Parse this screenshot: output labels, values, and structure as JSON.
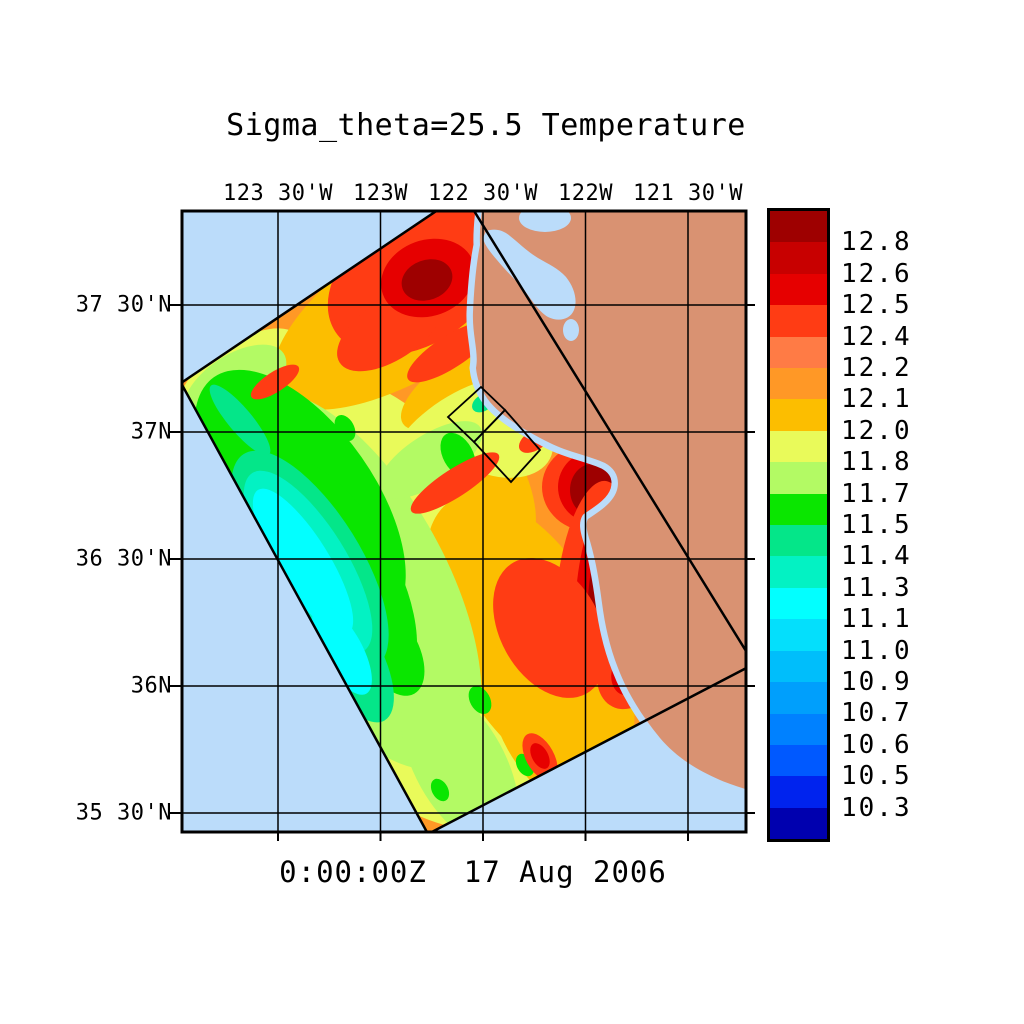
{
  "title": "Sigma_theta=25.5 Temperature",
  "timestamp": "0:00:00Z  17 Aug 2006",
  "axes": {
    "top_labels": [
      "123 30'W",
      "123W",
      "122 30'W",
      "122W",
      "121 30'W"
    ],
    "left_labels": [
      "37 30'N",
      "37N",
      "36 30'N",
      "36N",
      "35 30'N"
    ]
  },
  "colorbar": {
    "tick_labels": [
      "12.8",
      "12.6",
      "12.5",
      "12.4",
      "12.2",
      "12.1",
      "12.0",
      "11.8",
      "11.7",
      "11.5",
      "11.4",
      "11.3",
      "11.1",
      "11.0",
      "10.9",
      "10.7",
      "10.6",
      "10.5",
      "10.3"
    ],
    "colors_top_to_bottom": [
      "#9E0000",
      "#C80000",
      "#E60000",
      "#FF3C14",
      "#FF7B45",
      "#FF9826",
      "#FCBE00",
      "#E9FA5A",
      "#B3FA64",
      "#0AE600",
      "#04E689",
      "#03F2C3",
      "#02FFFF",
      "#04DFFC",
      "#00BEFB",
      "#009FFC",
      "#0081FF",
      "#0059FF",
      "#0023EE",
      "#0000AF"
    ]
  },
  "map_colors": {
    "ocean": "#BBDCFA",
    "land": "#D99272",
    "grid": "#000000"
  },
  "chart_data": {
    "type": "heatmap",
    "title": "Sigma_theta=25.5 Temperature",
    "subtitle": "0:00:00Z  17 Aug 2006",
    "x_tick_labels": [
      "123 30'W",
      "123W",
      "122 30'W",
      "122W",
      "121 30'W"
    ],
    "y_tick_labels": [
      "37 30'N",
      "37N",
      "36 30'N",
      "36N",
      "35 30'N"
    ],
    "legend_position": "right",
    "grid": true,
    "colorbar_tick_values": [
      12.8,
      12.6,
      12.5,
      12.4,
      12.2,
      12.1,
      12.0,
      11.8,
      11.7,
      11.5,
      11.4,
      11.3,
      11.1,
      11.0,
      10.9,
      10.7,
      10.6,
      10.5,
      10.3
    ],
    "colorbar_colors_top_to_bottom": [
      "#9E0000",
      "#C80000",
      "#E60000",
      "#FF3C14",
      "#FF7B45",
      "#FF9826",
      "#FCBE00",
      "#E9FA5A",
      "#B3FA64",
      "#0AE600",
      "#04E689",
      "#03F2C3",
      "#02FFFF",
      "#04DFFC",
      "#00BEFB",
      "#009FFC",
      "#0081FF",
      "#0059FF",
      "#0023EE",
      "#0000AF"
    ],
    "field_description_regions": [
      {
        "area": "northwest swath corner",
        "value_range": "12.4-12.8"
      },
      {
        "area": "west-central swath band",
        "value_range": "10.9-11.5"
      },
      {
        "area": "central swath",
        "value_range": "11.7-12.0"
      },
      {
        "area": "Monterey Bay and south coast",
        "value_range": "12.4-12.8"
      },
      {
        "area": "southern swath",
        "value_range": "11.7-11.8"
      }
    ]
  }
}
